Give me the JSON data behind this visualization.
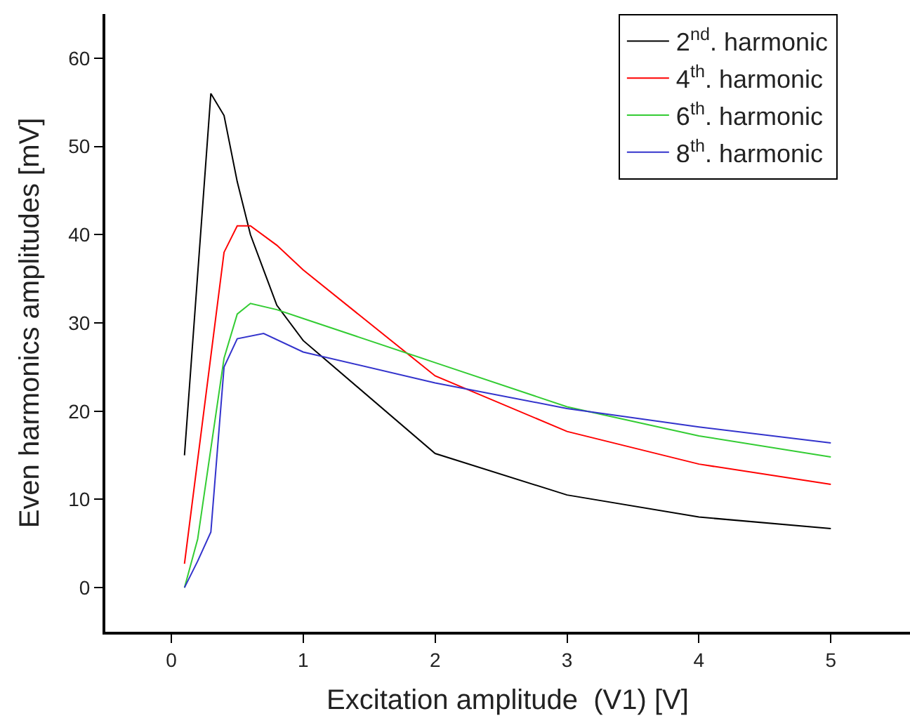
{
  "chart_data": {
    "type": "line",
    "xlabel": "Excitation amplitude  (V1) [V]",
    "ylabel": "Even harmonics amplitudes [mV]",
    "xlim": [
      -0.5,
      5.6
    ],
    "ylim": [
      -5,
      65
    ],
    "xticks": [
      0,
      1,
      2,
      3,
      4,
      5
    ],
    "yticks": [
      0,
      10,
      20,
      30,
      40,
      50,
      60
    ],
    "legend": "top right",
    "marker": "none",
    "line_style": "solid",
    "series": [
      {
        "name": "2$^{nd}$. harmonic",
        "color": "#000000",
        "x": [
          0.1,
          0.3,
          0.4,
          0.5,
          0.6,
          0.7,
          0.8,
          1,
          2,
          3,
          4,
          5
        ],
        "values": [
          15,
          56,
          53.5,
          46,
          40,
          36,
          32,
          28,
          15.2,
          10.5,
          8,
          6.7
        ]
      },
      {
        "name": "4$^{th}$. harmonic",
        "color": "#ff0000",
        "x": [
          0.1,
          0.4,
          0.5,
          0.6,
          0.8,
          1,
          2,
          3,
          4,
          5
        ],
        "values": [
          2.7,
          38,
          41,
          41,
          38.8,
          36,
          24,
          17.7,
          14,
          11.7
        ]
      },
      {
        "name": "6$^{th}$. harmonic",
        "color": "#33cc33",
        "x": [
          0.1,
          0.2,
          0.4,
          0.5,
          0.6,
          0.8,
          1,
          2,
          3,
          4,
          5
        ],
        "values": [
          0,
          5.5,
          26,
          31,
          32.2,
          31.5,
          30.5,
          25.5,
          20.5,
          17.2,
          14.8
        ]
      },
      {
        "name": "8$^{th}$. harmonic",
        "color": "#3333cc",
        "x": [
          0.1,
          0.2,
          0.3,
          0.4,
          0.5,
          0.7,
          1,
          2,
          3,
          4,
          5
        ],
        "values": [
          0,
          3,
          6.3,
          25,
          28.2,
          28.8,
          26.7,
          23.2,
          20.3,
          18.2,
          16.4
        ]
      }
    ]
  }
}
